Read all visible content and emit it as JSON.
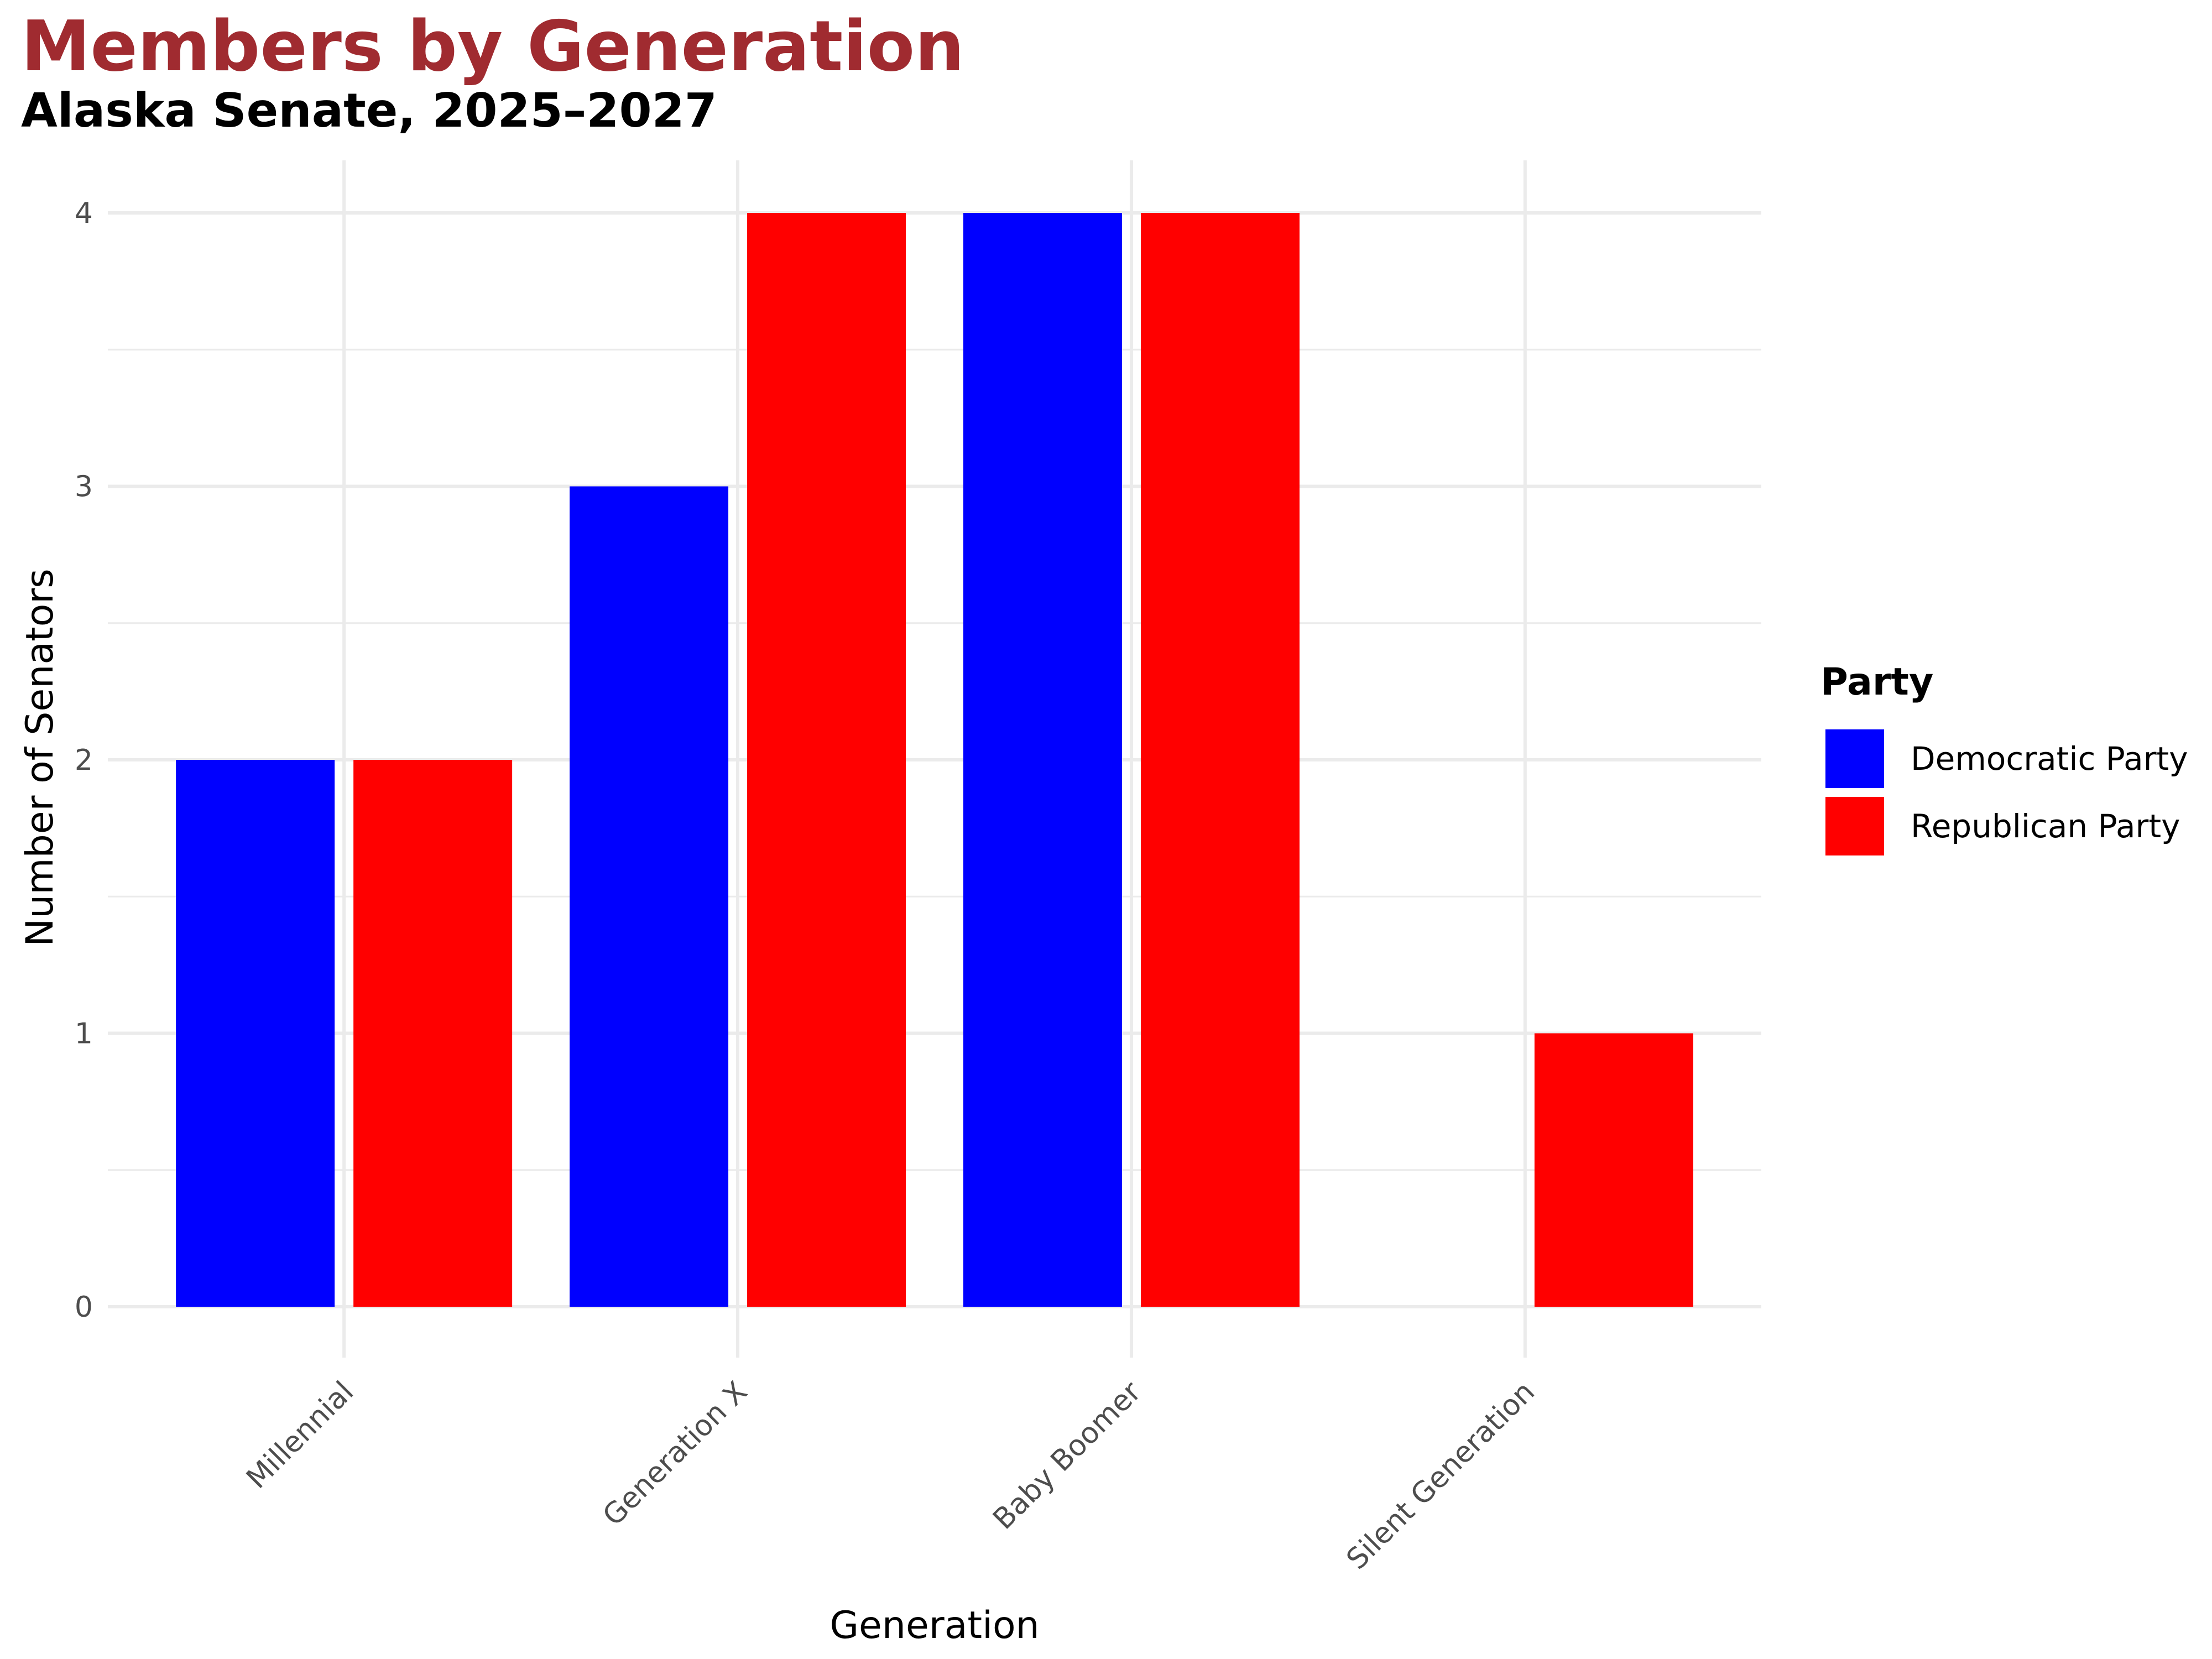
{
  "chart_data": {
    "type": "bar",
    "title": "Members by Generation",
    "subtitle": "Alaska Senate, 2025–2027",
    "xlabel": "Generation",
    "ylabel": "Number of Senators",
    "categories": [
      "Millennial",
      "Generation X",
      "Baby Boomer",
      "Silent Generation"
    ],
    "series": [
      {
        "name": "Democratic Party",
        "color": "#0000ff",
        "values": [
          2,
          3,
          4,
          0
        ]
      },
      {
        "name": "Republican Party",
        "color": "#ff0000",
        "values": [
          2,
          4,
          4,
          1
        ]
      }
    ],
    "ylim": [
      0,
      4
    ],
    "yticks": [
      "0",
      "1",
      "2",
      "3",
      "4"
    ],
    "grid": true,
    "legend": {
      "title": "Party",
      "position": "right"
    },
    "colors": {
      "title": "#a02b30",
      "grid": "#ebebeb",
      "tick_text": "#4d4d4d"
    }
  }
}
